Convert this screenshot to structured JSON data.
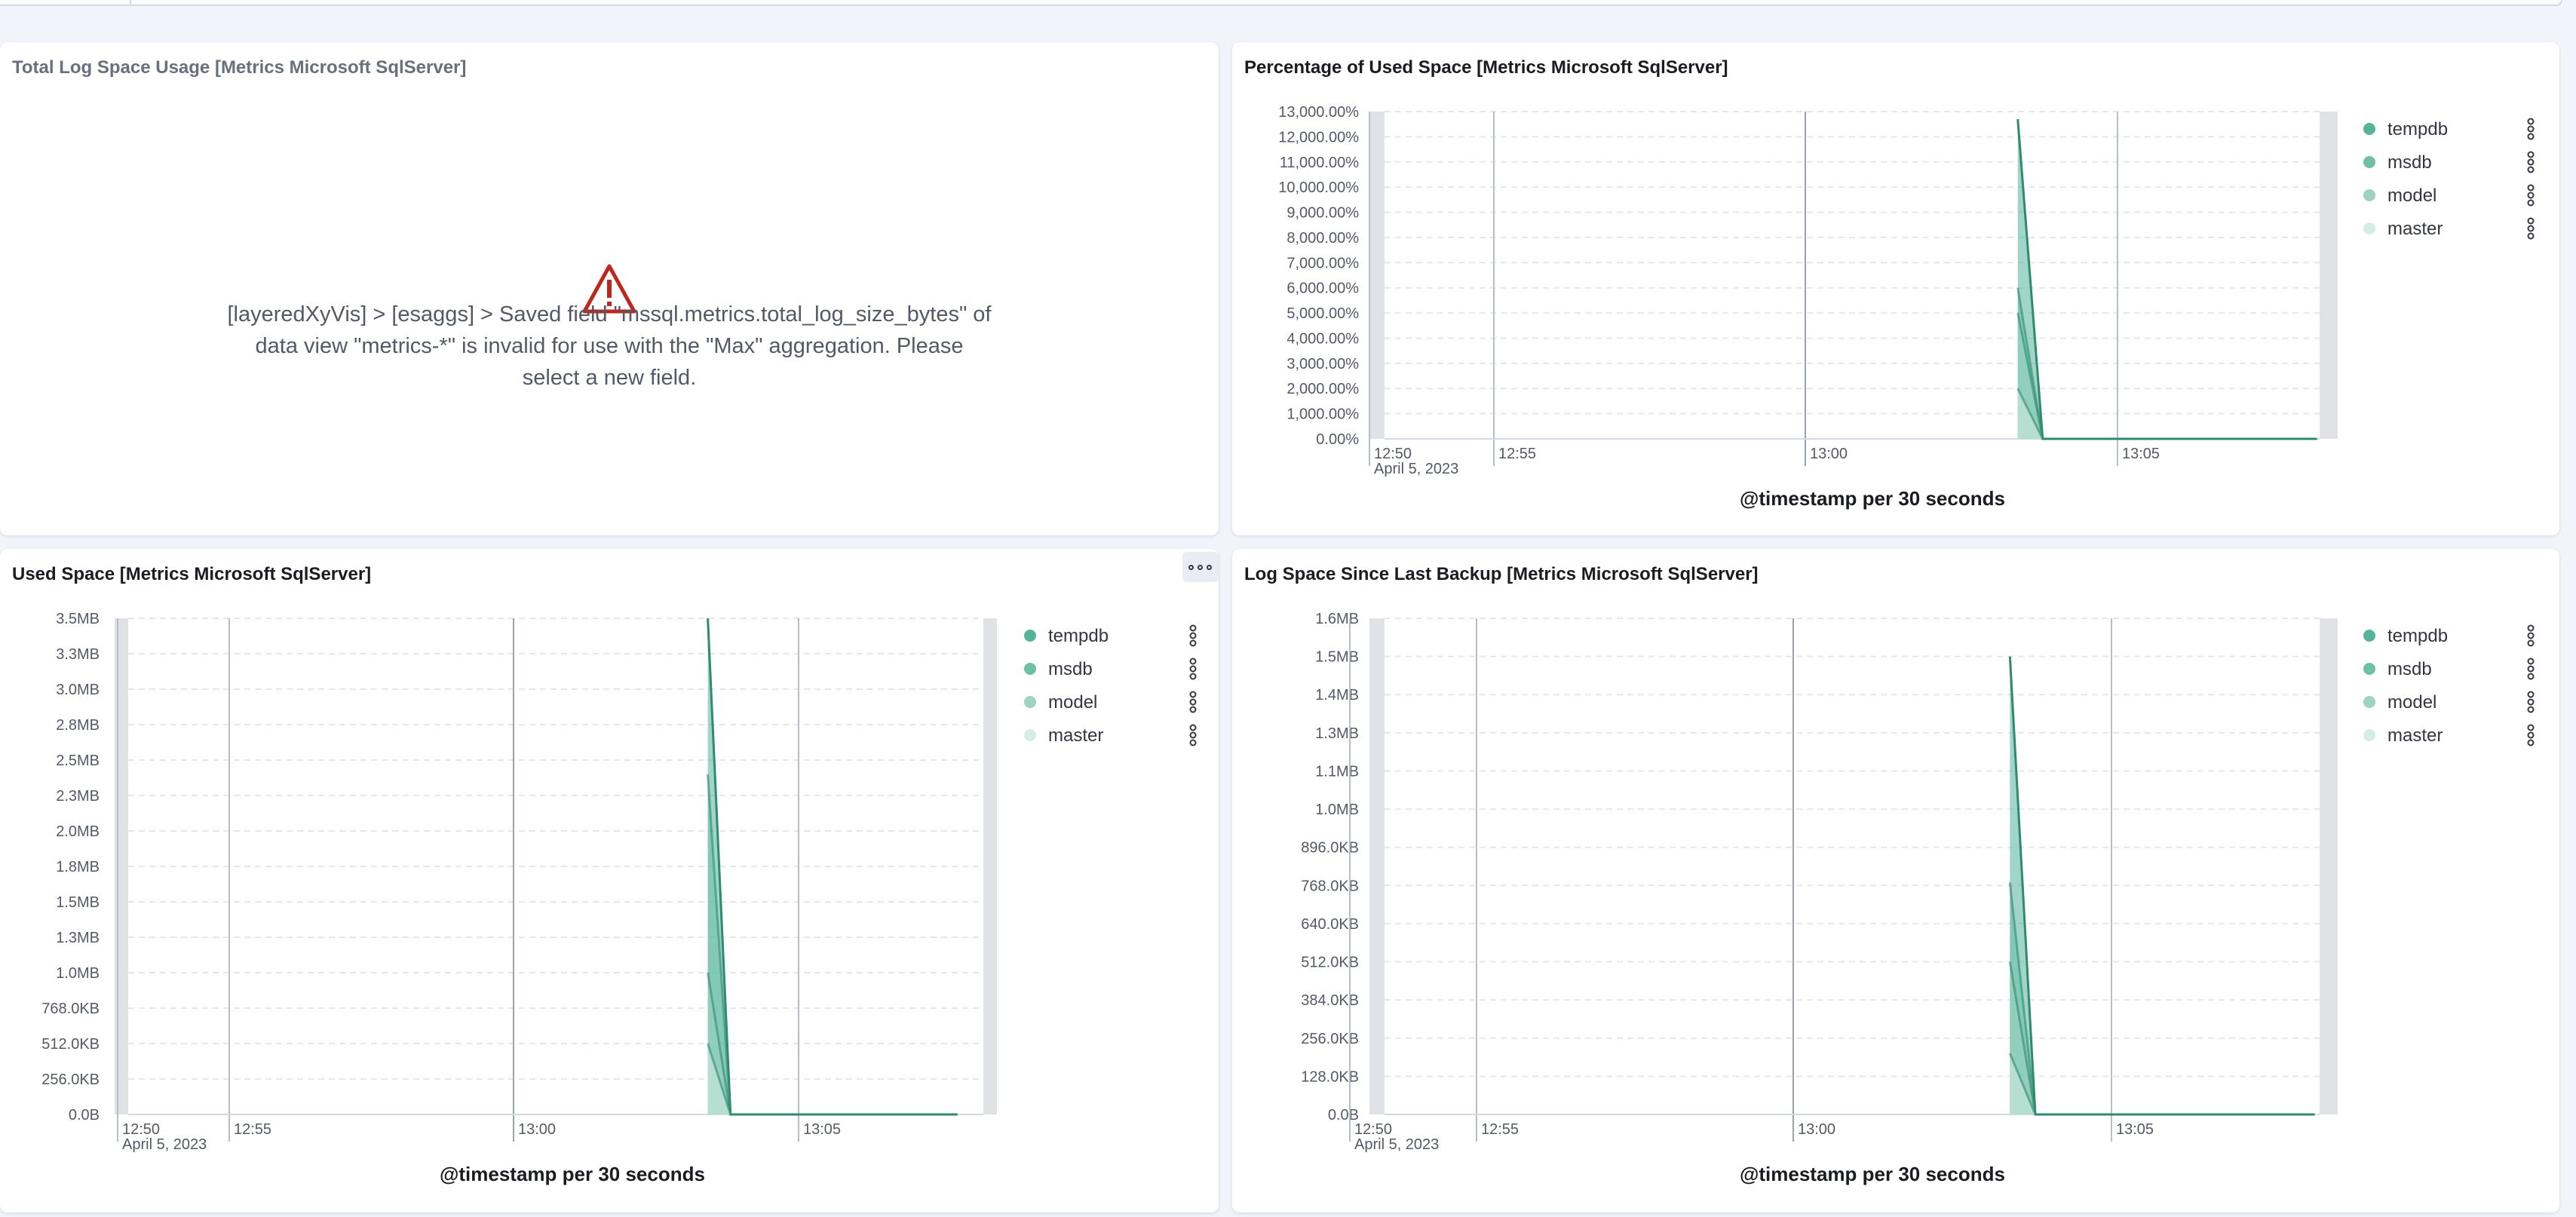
{
  "panels": {
    "total_log": {
      "title": "Total Log Space Usage [Metrics Microsoft SqlServer]",
      "error": "[layeredXyVis] > [esaggs] > Saved field \"mssql.metrics.total_log_size_bytes\" of data view \"metrics-*\" is invalid for use with the \"Max\" aggregation. Please select a new field."
    },
    "pct_used": {
      "title": "Percentage of Used Space [Metrics Microsoft SqlServer]"
    },
    "used_space": {
      "title": "Used Space [Metrics Microsoft SqlServer]"
    },
    "log_since_backup": {
      "title": "Log Space Since Last Backup [Metrics Microsoft SqlServer]"
    }
  },
  "colors": {
    "tempdb": "#54b399",
    "msdb": "#6dc0a6",
    "model": "#9dd3c1",
    "master": "#d6ede4",
    "line": "#2f8a6e",
    "error": "#bd271e"
  },
  "charts": {
    "pct_used": {
      "xaxis_date": "April 5, 2023",
      "xaxis_title": "@timestamp per 30 seconds",
      "legend": [
        "tempdb",
        "msdb",
        "model",
        "master"
      ]
    },
    "used_space": {
      "xaxis_date": "April 5, 2023",
      "xaxis_title": "@timestamp per 30 seconds",
      "legend": [
        "tempdb",
        "msdb",
        "model",
        "master"
      ]
    },
    "log_since_backup": {
      "xaxis_date": "April 5, 2023",
      "xaxis_title": "@timestamp per 30 seconds",
      "legend": [
        "tempdb",
        "msdb",
        "model",
        "master"
      ]
    }
  },
  "chart_data": [
    {
      "type": "area",
      "title": "Percentage of Used Space [Metrics Microsoft SqlServer]",
      "xlabel": "@timestamp per 30 seconds",
      "x_ticks": [
        "12:50",
        "12:55",
        "13:00",
        "13:05"
      ],
      "y_ticks": [
        "0.00%",
        "1,000.00%",
        "2,000.00%",
        "3,000.00%",
        "4,000.00%",
        "5,000.00%",
        "6,000.00%",
        "7,000.00%",
        "8,000.00%",
        "9,000.00%",
        "10,000.00%",
        "11,000.00%",
        "12,000.00%",
        "13,000.00%"
      ],
      "x": [
        "13:03:00",
        "13:03:30",
        "13:09:00"
      ],
      "series": [
        {
          "name": "tempdb",
          "values": [
            12700,
            0,
            0
          ]
        },
        {
          "name": "msdb",
          "values": [
            6000,
            0,
            0
          ]
        },
        {
          "name": "model",
          "values": [
            5000,
            0,
            0
          ]
        },
        {
          "name": "master",
          "values": [
            2000,
            0,
            0
          ]
        }
      ],
      "ylim": [
        0,
        13000
      ],
      "legend": "right"
    },
    {
      "type": "area",
      "title": "Used Space [Metrics Microsoft SqlServer]",
      "xlabel": "@timestamp per 30 seconds",
      "x_ticks": [
        "12:50",
        "12:55",
        "13:00",
        "13:05"
      ],
      "y_ticks": [
        "0.0B",
        "256.0KB",
        "512.0KB",
        "768.0KB",
        "1.0MB",
        "1.3MB",
        "1.5MB",
        "1.8MB",
        "2.0MB",
        "2.3MB",
        "2.5MB",
        "2.8MB",
        "3.0MB",
        "3.3MB",
        "3.5MB"
      ],
      "x": [
        "13:03:00",
        "13:03:30",
        "13:08:30"
      ],
      "series": [
        {
          "name": "tempdb",
          "values": [
            3.5,
            0,
            0
          ]
        },
        {
          "name": "msdb",
          "values": [
            2.4,
            0,
            0
          ]
        },
        {
          "name": "model",
          "values": [
            1.0,
            0,
            0
          ]
        },
        {
          "name": "master",
          "values": [
            0.5,
            0,
            0
          ]
        }
      ],
      "ylim": [
        0,
        3.5
      ],
      "legend": "right"
    },
    {
      "type": "area",
      "title": "Log Space Since Last Backup [Metrics Microsoft SqlServer]",
      "xlabel": "@timestamp per 30 seconds",
      "x_ticks": [
        "12:50",
        "12:55",
        "13:00",
        "13:05"
      ],
      "y_ticks": [
        "0.0B",
        "128.0KB",
        "256.0KB",
        "384.0KB",
        "512.0KB",
        "640.0KB",
        "768.0KB",
        "896.0KB",
        "1.0MB",
        "1.1MB",
        "1.3MB",
        "1.4MB",
        "1.5MB",
        "1.6MB"
      ],
      "x": [
        "13:03:00",
        "13:03:30",
        "13:09:00"
      ],
      "series": [
        {
          "name": "tempdb",
          "values": [
            1.5,
            0,
            0
          ]
        },
        {
          "name": "msdb",
          "values": [
            0.76,
            0,
            0
          ]
        },
        {
          "name": "model",
          "values": [
            0.5,
            0,
            0
          ]
        },
        {
          "name": "master",
          "values": [
            0.2,
            0,
            0
          ]
        }
      ],
      "ylim": [
        0,
        1.625
      ],
      "legend": "right"
    }
  ]
}
